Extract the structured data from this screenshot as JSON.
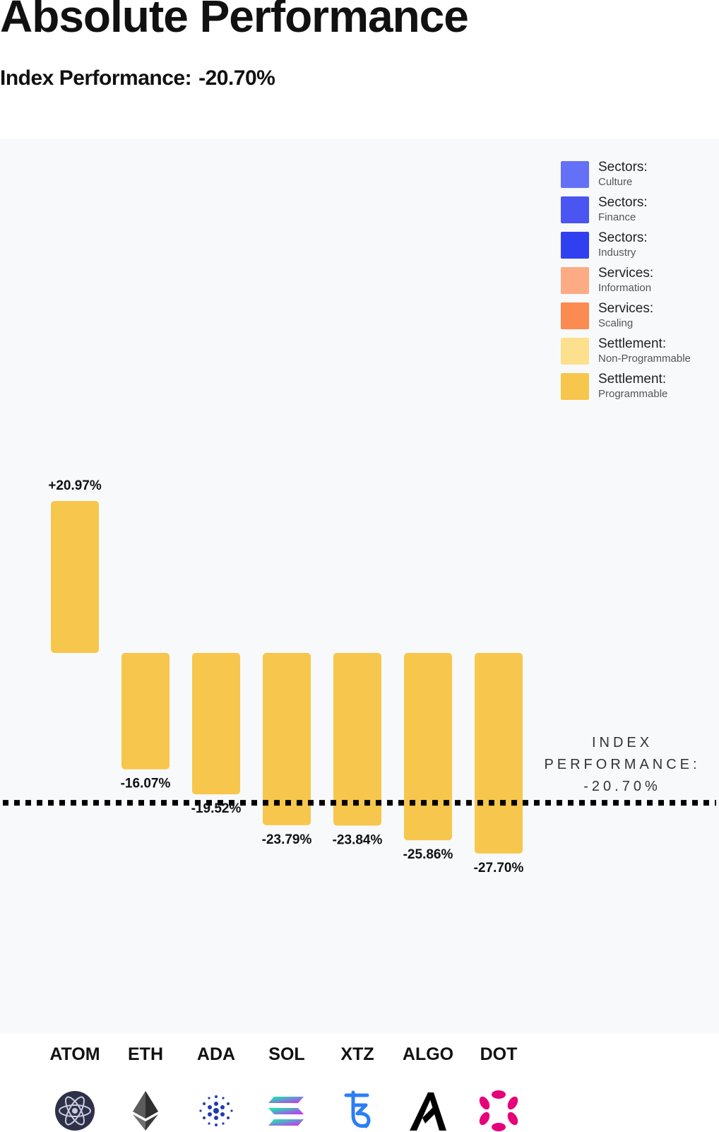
{
  "header": {
    "title": "Absolute Performance",
    "subtitle_label": "Index Performance:",
    "subtitle_value": "-20.70%"
  },
  "legend": [
    {
      "group": "Sectors:",
      "sub": "Culture",
      "color": "#6470f5"
    },
    {
      "group": "Sectors:",
      "sub": "Finance",
      "color": "#4a55f2"
    },
    {
      "group": "Sectors:",
      "sub": "Industry",
      "color": "#3040f0"
    },
    {
      "group": "Services:",
      "sub": "Information",
      "color": "#fcab84"
    },
    {
      "group": "Services:",
      "sub": "Scaling",
      "color": "#fc8b52"
    },
    {
      "group": "Settlement:",
      "sub": "Non-Programmable",
      "color": "#fde08e"
    },
    {
      "group": "Settlement:",
      "sub": "Programmable",
      "color": "#f6c74c"
    }
  ],
  "index_line": {
    "lines": [
      "INDEX",
      "PERFORMANCE:",
      "-20.70%"
    ]
  },
  "chart_data": {
    "type": "bar",
    "title": "Absolute Performance",
    "categories": [
      "ATOM",
      "ETH",
      "ADA",
      "SOL",
      "XTZ",
      "ALGO",
      "DOT"
    ],
    "values": [
      20.97,
      -16.07,
      -19.52,
      -23.79,
      -23.84,
      -25.86,
      -27.7
    ],
    "value_labels": [
      "+20.97%",
      "-16.07%",
      "-19.52%",
      "-23.79%",
      "-23.84%",
      "-25.86%",
      "-27.70%"
    ],
    "series_category": "Settlement: Programmable",
    "reference_line": {
      "name": "Index Performance",
      "value": -20.7
    },
    "unit": "%",
    "ylim": [
      -40,
      40
    ],
    "bar_color": "#f6c74c"
  },
  "tokens": [
    {
      "ticker": "ATOM",
      "icon": "cosmos-atom-icon"
    },
    {
      "ticker": "ETH",
      "icon": "ethereum-icon"
    },
    {
      "ticker": "ADA",
      "icon": "cardano-icon"
    },
    {
      "ticker": "SOL",
      "icon": "solana-icon"
    },
    {
      "ticker": "XTZ",
      "icon": "tezos-icon"
    },
    {
      "ticker": "ALGO",
      "icon": "algorand-icon"
    },
    {
      "ticker": "DOT",
      "icon": "polkadot-icon"
    }
  ]
}
